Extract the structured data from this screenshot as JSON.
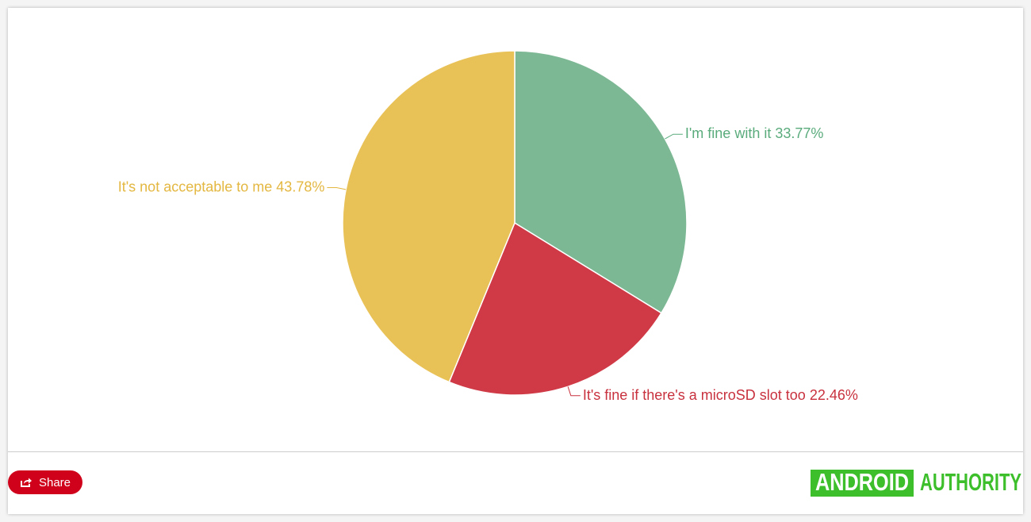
{
  "chart_data": {
    "type": "pie",
    "categories": [
      "I'm fine with it",
      "It's fine if there's a microSD slot too",
      "It's not acceptable to me"
    ],
    "values": [
      33.77,
      22.46,
      43.78
    ],
    "value_labels": [
      "33.77%",
      "22.46%",
      "43.78%"
    ],
    "colors": [
      "#7db895",
      "#cf3a46",
      "#e8c157"
    ],
    "label_colors": [
      "#5aab7c",
      "#c8313e",
      "#e3b740"
    ]
  },
  "share_button": "Share",
  "logo": {
    "left": "ANDROID",
    "right": "AUTHORITY"
  }
}
